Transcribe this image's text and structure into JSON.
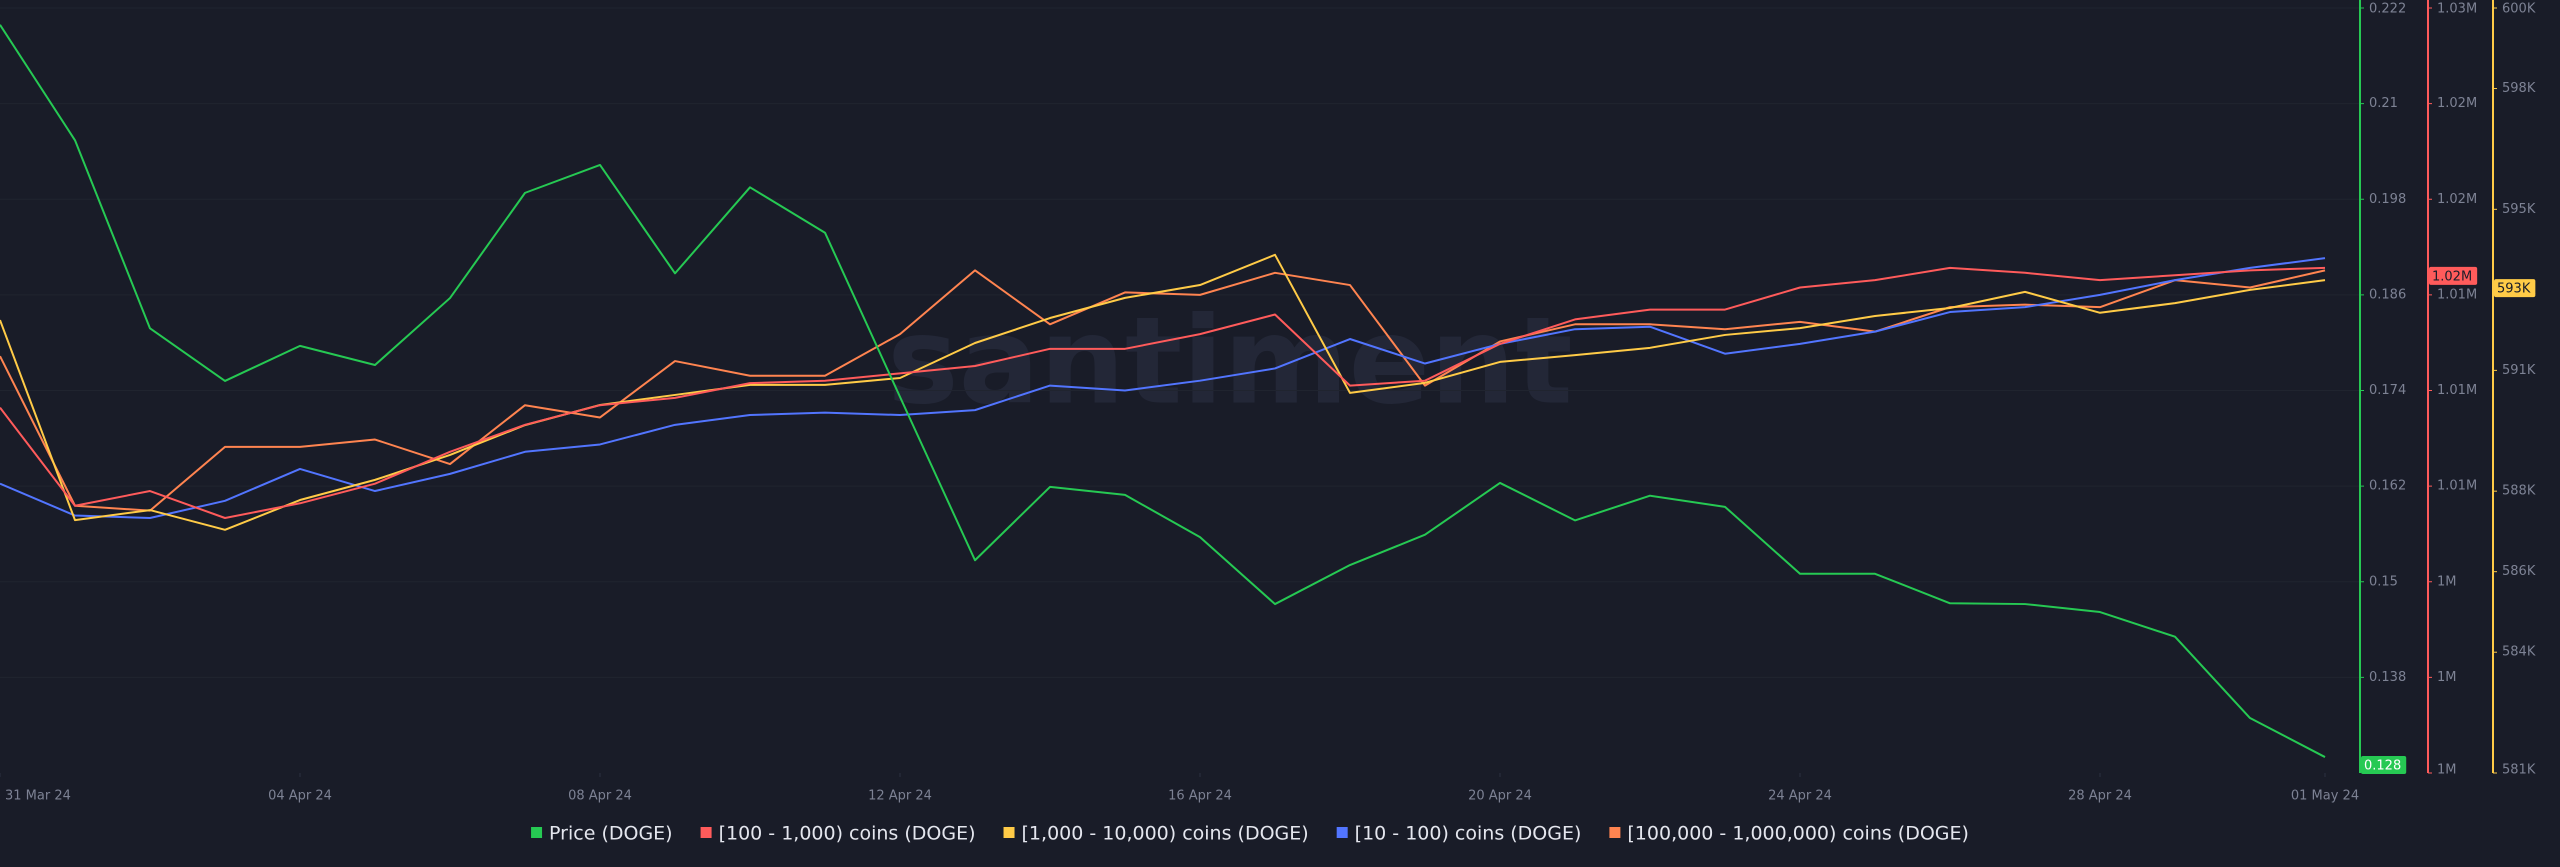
{
  "chart_data": {
    "type": "line",
    "watermark": "santiment",
    "x": [
      "2024-03-31",
      "2024-04-01",
      "2024-04-02",
      "2024-04-03",
      "2024-04-04",
      "2024-04-05",
      "2024-04-06",
      "2024-04-07",
      "2024-04-08",
      "2024-04-09",
      "2024-04-10",
      "2024-04-11",
      "2024-04-12",
      "2024-04-13",
      "2024-04-14",
      "2024-04-15",
      "2024-04-16",
      "2024-04-17",
      "2024-04-18",
      "2024-04-19",
      "2024-04-20",
      "2024-04-21",
      "2024-04-22",
      "2024-04-23",
      "2024-04-24",
      "2024-04-25",
      "2024-04-26",
      "2024-04-27",
      "2024-04-28",
      "2024-04-29",
      "2024-04-30",
      "2024-05-01"
    ],
    "xlim": [
      "2024-03-31",
      "2024-05-01"
    ],
    "xticks": [
      {
        "value": "2024-03-31",
        "label": "31 Mar 24"
      },
      {
        "value": "2024-04-04",
        "label": "04 Apr 24"
      },
      {
        "value": "2024-04-08",
        "label": "08 Apr 24"
      },
      {
        "value": "2024-04-12",
        "label": "12 Apr 24"
      },
      {
        "value": "2024-04-16",
        "label": "16 Apr 24"
      },
      {
        "value": "2024-04-20",
        "label": "20 Apr 24"
      },
      {
        "value": "2024-04-24",
        "label": "24 Apr 24"
      },
      {
        "value": "2024-04-28",
        "label": "28 Apr 24"
      },
      {
        "value": "2024-05-01",
        "label": "01 May 24"
      }
    ],
    "ylim": [
      0.126,
      0.222
    ],
    "yticks": [
      0.138,
      0.15,
      0.162,
      0.174,
      0.186,
      0.198,
      0.21,
      0.222
    ],
    "y2lim": [
      995400,
      1026600
    ],
    "y2ticks": [
      {
        "value": 995400,
        "label": "1M"
      },
      {
        "value": 999300,
        "label": "1M"
      },
      {
        "value": 1003200,
        "label": "1M"
      },
      {
        "value": 1007100,
        "label": "1.01M"
      },
      {
        "value": 1011000,
        "label": "1.01M"
      },
      {
        "value": 1014900,
        "label": "1.01M"
      },
      {
        "value": 1018800,
        "label": "1.02M"
      },
      {
        "value": 1022700,
        "label": "1.02M"
      },
      {
        "value": 1026600,
        "label": "1.03M"
      }
    ],
    "y3lim": [
      581000,
      600000
    ],
    "y3ticks": [
      {
        "value": 581000,
        "label": "581K"
      },
      {
        "value": 584000,
        "label": "584K"
      },
      {
        "value": 586000,
        "label": "586K"
      },
      {
        "value": 588000,
        "label": "588K"
      },
      {
        "value": 591000,
        "label": "591K"
      },
      {
        "value": 593000,
        "label": "593K"
      },
      {
        "value": 595000,
        "label": "595K"
      },
      {
        "value": 598000,
        "label": "598K"
      },
      {
        "value": 600000,
        "label": "600K"
      }
    ],
    "grid": true,
    "series": [
      {
        "name": "Price (DOGE)",
        "color": "#26c953",
        "axis": "y",
        "last_value_label": "0.128",
        "values": [
          0.2199,
          0.2054,
          0.1818,
          0.1752,
          0.1796,
          0.1772,
          0.1856,
          0.1988,
          0.2023,
          0.1887,
          0.1995,
          0.1938,
          0.1732,
          0.1527,
          0.1619,
          0.1609,
          0.1556,
          0.1472,
          0.1521,
          0.1559,
          0.1624,
          0.1577,
          0.1608,
          0.1594,
          0.151,
          0.151,
          0.1473,
          0.1472,
          0.1462,
          0.1431,
          0.1329,
          0.128
        ]
      },
      {
        "name": "[100 - 1,000) coins (DOGE)",
        "color": "#ff5b5b",
        "axis": "y2",
        "last_value_label": "1.02M",
        "values": [
          1010300,
          1006300,
          1006900,
          1005800,
          1006400,
          1007200,
          1008500,
          1009600,
          1010400,
          1010700,
          1011300,
          1011400,
          1011700,
          1012000,
          1012700,
          1012700,
          1013300,
          1014100,
          1011200,
          1011400,
          1012900,
          1013900,
          1014300,
          1014300,
          1015200,
          1015500,
          1016000,
          1015800,
          1015500,
          1015700,
          1015900,
          1016000
        ]
      },
      {
        "name": "[1,000 - 10,000) coins (DOGE)",
        "color": "#ffcb47",
        "axis": "y3",
        "last_value_label": "593K",
        "values": [
          592250,
          587280,
          587530,
          587040,
          587780,
          588280,
          588900,
          589640,
          590140,
          590390,
          590640,
          590640,
          590810,
          591680,
          592300,
          592800,
          593120,
          593870,
          590440,
          590690,
          591210,
          591380,
          591560,
          591880,
          592050,
          592350,
          592550,
          592950,
          592430,
          592670,
          593000,
          593240
        ]
      },
      {
        "name": "[10 - 100) coins (DOGE)",
        "color": "#5275ff",
        "axis": "y2",
        "values": [
          1007200,
          1005900,
          1005800,
          1006500,
          1007800,
          1006900,
          1007600,
          1008500,
          1008800,
          1009600,
          1010000,
          1010100,
          1010000,
          1010200,
          1011200,
          1011000,
          1011400,
          1011900,
          1013100,
          1012100,
          1012900,
          1013500,
          1013600,
          1012500,
          1012900,
          1013400,
          1014200,
          1014400,
          1014900,
          1015500,
          1016000,
          1016400
        ]
      },
      {
        "name": "[100,000  - 1,000,000) coins (DOGE)",
        "color": "#ff8450",
        "axis": "y2",
        "values": [
          1012400,
          1006300,
          1006100,
          1008700,
          1008700,
          1009000,
          1008000,
          1010400,
          1009900,
          1012200,
          1011600,
          1011600,
          1013300,
          1015900,
          1013700,
          1015000,
          1014900,
          1015800,
          1015300,
          1011200,
          1013000,
          1013700,
          1013700,
          1013500,
          1013800,
          1013400,
          1014400,
          1014500,
          1014400,
          1015500,
          1015200,
          1015900
        ]
      }
    ]
  }
}
